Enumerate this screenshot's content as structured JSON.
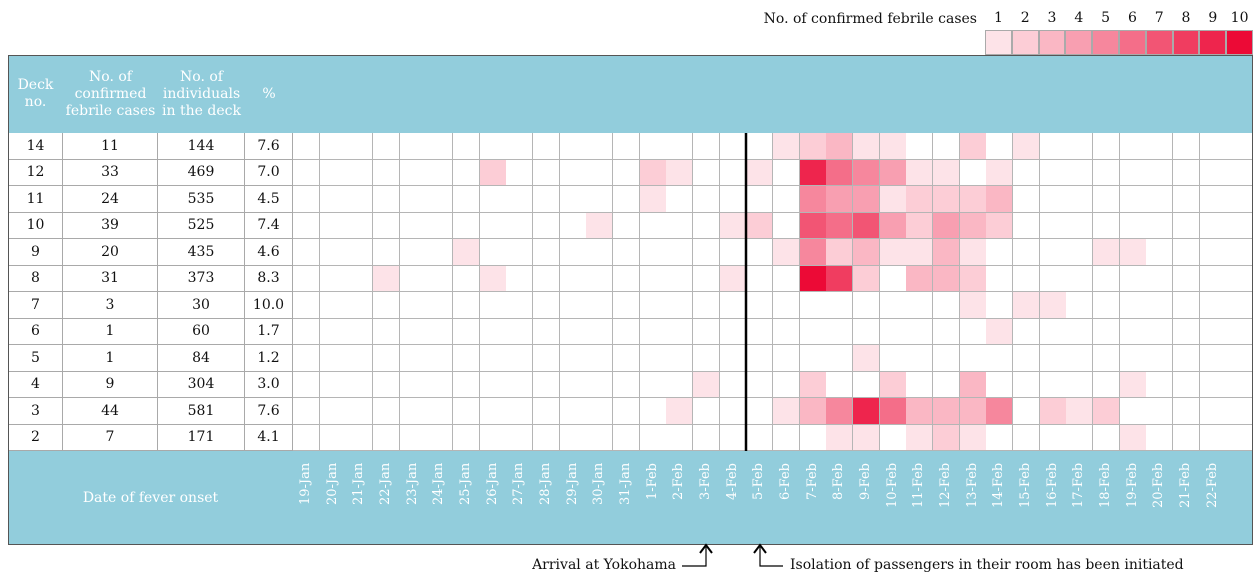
{
  "chart_data": {
    "type": "heatmap",
    "legend_title": "No. of confirmed febrile cases",
    "legend_levels": [
      1,
      2,
      3,
      4,
      5,
      6,
      7,
      8,
      9,
      10
    ],
    "colors": [
      "#fde3e8",
      "#fccdd6",
      "#fab7c4",
      "#f89fb1",
      "#f6879d",
      "#f46e89",
      "#f25574",
      "#f03d60",
      "#ee254d",
      "#ec0a36"
    ],
    "header_color": "#92cddc",
    "columns": [
      "Deck no.",
      "No. of confirmed febrile cases",
      "No. of individuals in the deck",
      "%"
    ],
    "rows": [
      {
        "deck": 14,
        "cases": 11,
        "individuals": 144,
        "percent": "7.6"
      },
      {
        "deck": 12,
        "cases": 33,
        "individuals": 469,
        "percent": "7.0"
      },
      {
        "deck": 11,
        "cases": 24,
        "individuals": 535,
        "percent": "4.5"
      },
      {
        "deck": 10,
        "cases": 39,
        "individuals": 525,
        "percent": "7.4"
      },
      {
        "deck": 9,
        "cases": 20,
        "individuals": 435,
        "percent": "4.6"
      },
      {
        "deck": 8,
        "cases": 31,
        "individuals": 373,
        "percent": "8.3"
      },
      {
        "deck": 7,
        "cases": 3,
        "individuals": 30,
        "percent": "10.0"
      },
      {
        "deck": 6,
        "cases": 1,
        "individuals": 60,
        "percent": "1.7"
      },
      {
        "deck": 5,
        "cases": 1,
        "individuals": 84,
        "percent": "1.2"
      },
      {
        "deck": 4,
        "cases": 9,
        "individuals": 304,
        "percent": "3.0"
      },
      {
        "deck": 3,
        "cases": 44,
        "individuals": 581,
        "percent": "7.6"
      },
      {
        "deck": 2,
        "cases": 7,
        "individuals": 171,
        "percent": "4.1"
      }
    ],
    "x_label": "Date of fever onset",
    "categories": [
      "19-Jan",
      "20-Jan",
      "21-Jan",
      "22-Jan",
      "23-Jan",
      "24-Jan",
      "25-Jan",
      "26-Jan",
      "27-Jan",
      "28-Jan",
      "29-Jan",
      "30-Jan",
      "31-Jan",
      "1-Feb",
      "2-Feb",
      "3-Feb",
      "4-Feb",
      "5-Feb",
      "6-Feb",
      "7-Feb",
      "8-Feb",
      "9-Feb",
      "10-Feb",
      "11-Feb",
      "12-Feb",
      "13-Feb",
      "14-Feb",
      "15-Feb",
      "16-Feb",
      "17-Feb",
      "18-Feb",
      "19-Feb",
      "20-Feb",
      "21-Feb",
      "22-Feb",
      null
    ],
    "values": [
      [
        0,
        0,
        0,
        0,
        0,
        0,
        0,
        0,
        0,
        0,
        0,
        0,
        0,
        0,
        0,
        0,
        0,
        0,
        1,
        2,
        3,
        1,
        1,
        0,
        0,
        2,
        0,
        1,
        0,
        0,
        0,
        0,
        0,
        0,
        0,
        0
      ],
      [
        0,
        0,
        0,
        0,
        0,
        0,
        0,
        2,
        0,
        0,
        0,
        0,
        0,
        2,
        1,
        0,
        0,
        1,
        0,
        9,
        6,
        5,
        4,
        1,
        1,
        0,
        1,
        0,
        0,
        0,
        0,
        0,
        0,
        0,
        0,
        0
      ],
      [
        0,
        0,
        0,
        0,
        0,
        0,
        0,
        0,
        0,
        0,
        0,
        0,
        0,
        1,
        0,
        0,
        0,
        0,
        0,
        5,
        4,
        4,
        1,
        2,
        2,
        2,
        3,
        0,
        0,
        0,
        0,
        0,
        0,
        0,
        0,
        0
      ],
      [
        0,
        0,
        0,
        0,
        0,
        0,
        0,
        0,
        0,
        0,
        0,
        1,
        0,
        0,
        0,
        0,
        1,
        2,
        0,
        7,
        6,
        7,
        4,
        2,
        4,
        3,
        2,
        0,
        0,
        0,
        0,
        0,
        0,
        0,
        0,
        0
      ],
      [
        0,
        0,
        0,
        0,
        0,
        0,
        1,
        0,
        0,
        0,
        0,
        0,
        0,
        0,
        0,
        0,
        0,
        0,
        1,
        5,
        2,
        3,
        1,
        1,
        3,
        1,
        0,
        0,
        0,
        0,
        1,
        1,
        0,
        0,
        0,
        0
      ],
      [
        0,
        0,
        0,
        1,
        0,
        0,
        0,
        1,
        0,
        0,
        0,
        0,
        0,
        0,
        0,
        0,
        1,
        0,
        0,
        10,
        8,
        2,
        0,
        3,
        3,
        2,
        0,
        0,
        0,
        0,
        0,
        0,
        0,
        0,
        0,
        0
      ],
      [
        0,
        0,
        0,
        0,
        0,
        0,
        0,
        0,
        0,
        0,
        0,
        0,
        0,
        0,
        0,
        0,
        0,
        0,
        0,
        0,
        0,
        0,
        0,
        0,
        0,
        1,
        0,
        1,
        1,
        0,
        0,
        0,
        0,
        0,
        0,
        0
      ],
      [
        0,
        0,
        0,
        0,
        0,
        0,
        0,
        0,
        0,
        0,
        0,
        0,
        0,
        0,
        0,
        0,
        0,
        0,
        0,
        0,
        0,
        0,
        0,
        0,
        0,
        0,
        1,
        0,
        0,
        0,
        0,
        0,
        0,
        0,
        0,
        0
      ],
      [
        0,
        0,
        0,
        0,
        0,
        0,
        0,
        0,
        0,
        0,
        0,
        0,
        0,
        0,
        0,
        0,
        0,
        0,
        0,
        0,
        0,
        1,
        0,
        0,
        0,
        0,
        0,
        0,
        0,
        0,
        0,
        0,
        0,
        0,
        0,
        0
      ],
      [
        0,
        0,
        0,
        0,
        0,
        0,
        0,
        0,
        0,
        0,
        0,
        0,
        0,
        0,
        0,
        1,
        0,
        0,
        0,
        2,
        0,
        0,
        2,
        0,
        0,
        3,
        0,
        0,
        0,
        0,
        0,
        1,
        0,
        0,
        0,
        0
      ],
      [
        0,
        0,
        0,
        0,
        0,
        0,
        0,
        0,
        0,
        0,
        0,
        0,
        0,
        0,
        1,
        0,
        0,
        0,
        1,
        3,
        5,
        9,
        6,
        3,
        3,
        3,
        5,
        0,
        2,
        1,
        2,
        0,
        0,
        0,
        0,
        0
      ],
      [
        0,
        0,
        0,
        0,
        0,
        0,
        0,
        0,
        0,
        0,
        0,
        0,
        0,
        0,
        0,
        0,
        0,
        0,
        0,
        0,
        1,
        1,
        0,
        1,
        2,
        1,
        0,
        0,
        0,
        0,
        0,
        1,
        0,
        0,
        0,
        0
      ]
    ],
    "annotations": [
      "Arrival at Yokohama",
      "Isolation of passengers in their room has been initiated"
    ]
  }
}
